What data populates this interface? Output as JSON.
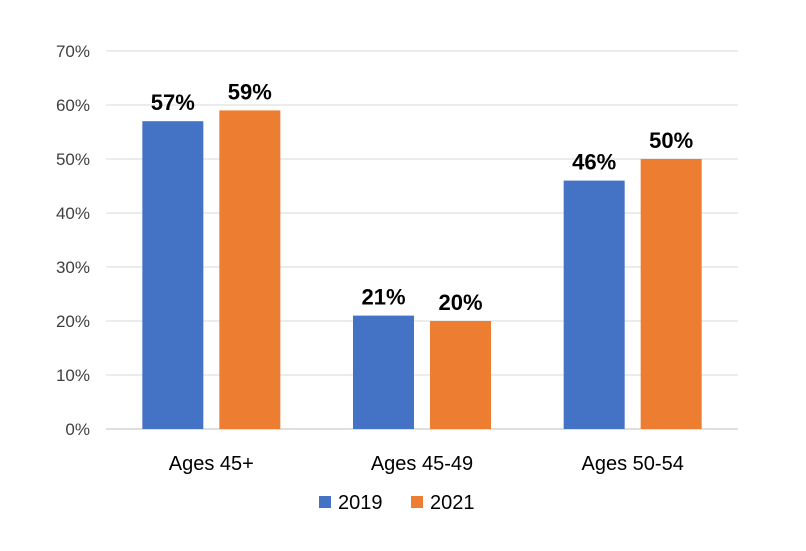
{
  "chart_data": {
    "type": "bar",
    "title": "",
    "xlabel": "",
    "ylabel": "",
    "ylim": [
      0,
      70
    ],
    "yticks": [
      0,
      10,
      20,
      30,
      40,
      50,
      60,
      70
    ],
    "ytick_labels": [
      "0%",
      "10%",
      "20%",
      "30%",
      "40%",
      "50%",
      "60%",
      "70%"
    ],
    "categories": [
      "Ages 45+",
      "Ages 45-49",
      "Ages 50-54"
    ],
    "series": [
      {
        "name": "2019",
        "color": "#4472c4",
        "values": [
          57,
          21,
          46
        ],
        "labels": [
          "57%",
          "21%",
          "46%"
        ]
      },
      {
        "name": "2021",
        "color": "#ed7d31",
        "values": [
          59,
          20,
          50
        ],
        "labels": [
          "59%",
          "20%",
          "50%"
        ]
      }
    ],
    "grid": true,
    "legend_position": "bottom"
  }
}
